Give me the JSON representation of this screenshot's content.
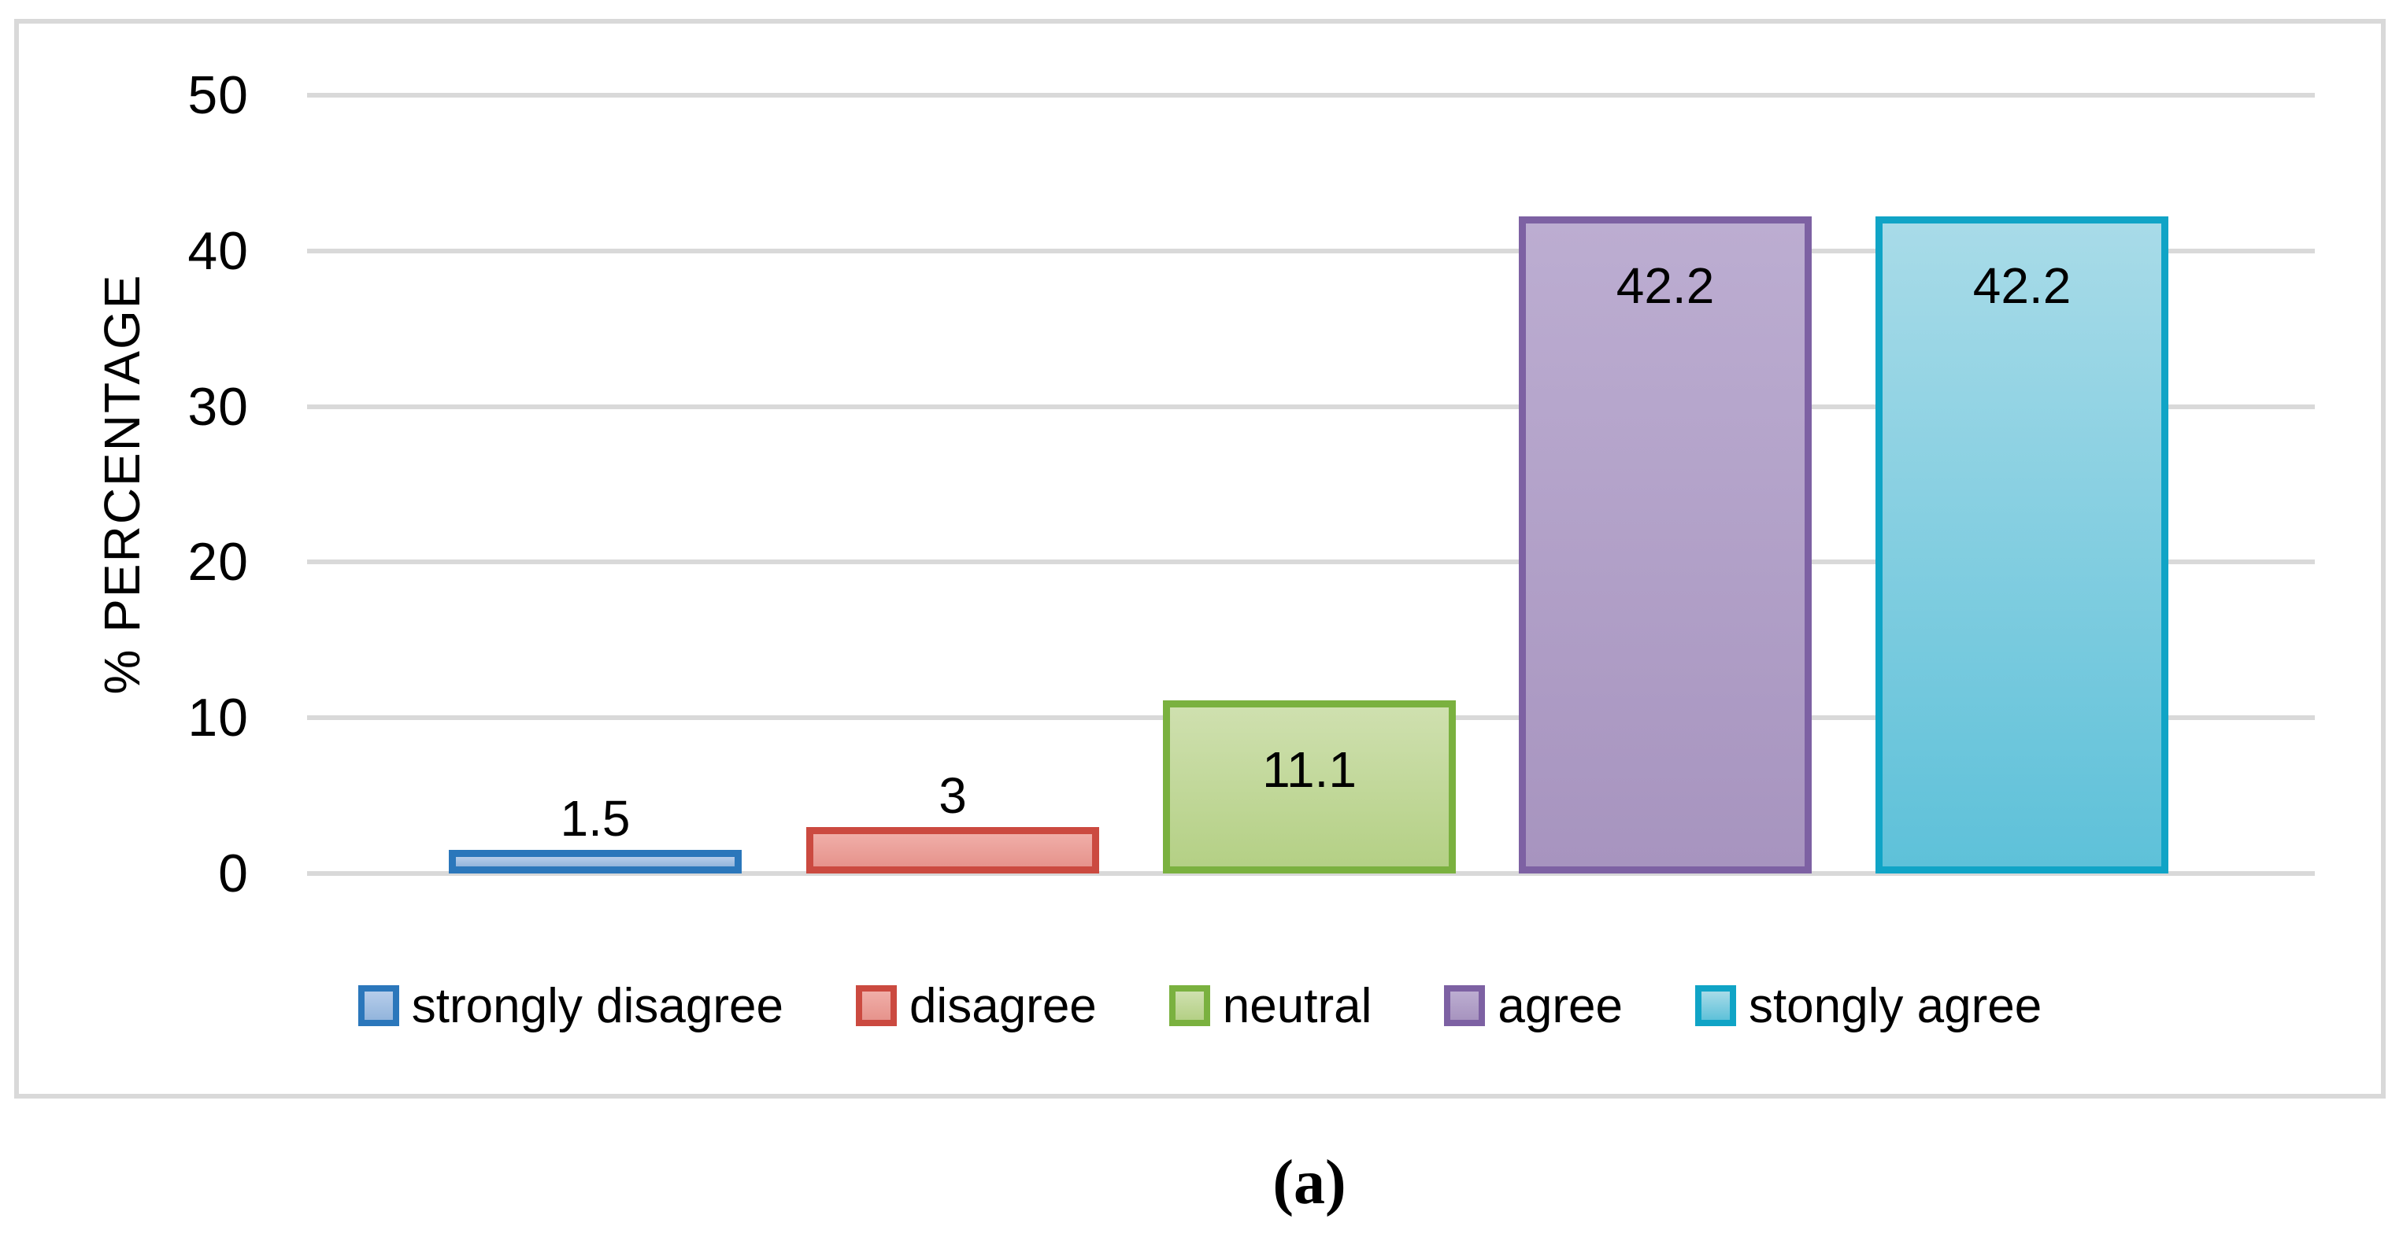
{
  "figure": {
    "caption": "(a)"
  },
  "chart_data": {
    "type": "bar",
    "title": "",
    "xlabel": "",
    "ylabel": "% PERCENTAGE",
    "ylim": [
      0,
      50
    ],
    "yticks": [
      "50",
      "40",
      "30",
      "20",
      "10",
      "0"
    ],
    "grid": true,
    "gridline_color": "#D9D9D9",
    "chart_border_color": "#D9D9D9",
    "legend_position": "bottom",
    "categories": [
      "strongly disagree",
      "disagree",
      "neutral",
      "agree",
      "stongly agree"
    ],
    "values": [
      1.5,
      3,
      11.1,
      42.2,
      42.2
    ],
    "value_labels": [
      "1.5",
      "3",
      "11.1",
      "42.2",
      "42.2"
    ],
    "bar_colors": [
      {
        "category": "strongly disagree",
        "border": "#2B77BB",
        "fill_top": "#B6CDEA",
        "fill_bottom": "#93B5DC"
      },
      {
        "category": "disagree",
        "border": "#CB4A40",
        "fill_top": "#F0AEA8",
        "fill_bottom": "#E6938C"
      },
      {
        "category": "neutral",
        "border": "#7AB13F",
        "fill_top": "#CFE0AF",
        "fill_bottom": "#B4D085"
      },
      {
        "category": "agree",
        "border": "#7D61A3",
        "fill_top": "#BCADD1",
        "fill_bottom": "#A794BF"
      },
      {
        "category": "stongly agree",
        "border": "#10A4C6",
        "fill_top": "#A8DBE8",
        "fill_bottom": "#5EC1D9"
      }
    ]
  }
}
